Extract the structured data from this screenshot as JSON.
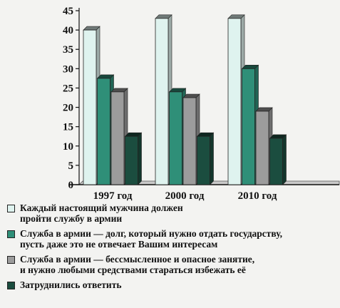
{
  "chart_data": {
    "type": "bar",
    "categories": [
      "1997 год",
      "2000 год",
      "2010 год"
    ],
    "series": [
      {
        "name": "Каждый настоящий мужчина должен пройти службу в армии",
        "values": [
          40,
          43,
          43
        ],
        "color": "#dff3ef"
      },
      {
        "name": "Служба в армии — долг, который нужно отдать государству, пусть даже это не отвечает Вашим интересам",
        "values": [
          27.5,
          24,
          30
        ],
        "color": "#2f8f78"
      },
      {
        "name": "Служба в армии — бессмысленное и опасное занятие, и нужно любыми средствами стараться избежать её",
        "values": [
          24,
          22.5,
          19
        ],
        "color": "#9c9c9c"
      },
      {
        "name": "Затруднились ответить",
        "values": [
          12.5,
          12.5,
          12
        ],
        "color": "#1b4d3f"
      }
    ],
    "yticks": [
      0,
      5,
      10,
      15,
      20,
      25,
      30,
      35,
      40,
      45
    ],
    "ylim": [
      0,
      45
    ],
    "grid": false,
    "legend_position": "bottom"
  },
  "legend": {
    "items": [
      {
        "lines": [
          "Каждый настоящий мужчина должен",
          "пройти службу в армии"
        ]
      },
      {
        "lines": [
          "Служба в армии — долг, который нужно отдать государству,",
          "пусть даже это не отвечает Вашим интересам"
        ]
      },
      {
        "lines": [
          "Служба в армии — бессмысленное и опасное занятие,",
          "и нужно любыми средствами стараться избежать её"
        ]
      },
      {
        "lines": [
          "Затруднились ответить"
        ]
      }
    ]
  }
}
